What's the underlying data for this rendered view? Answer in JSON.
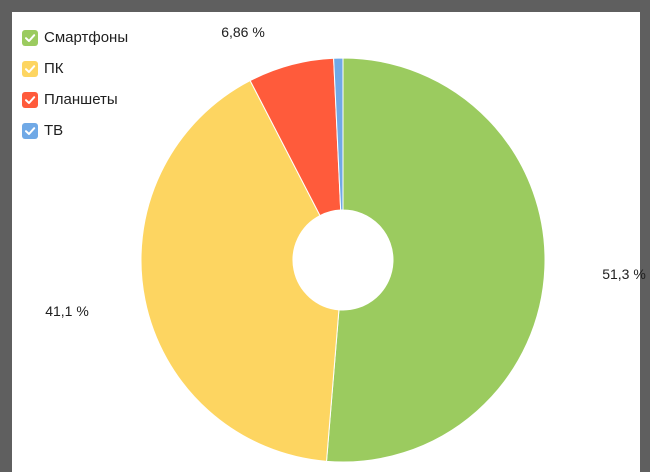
{
  "chart_data": {
    "type": "pie",
    "donut": true,
    "title": "",
    "legend_position": "top-left",
    "categories": [
      "Смартфоны",
      "ПК",
      "Планшеты",
      "ТВ"
    ],
    "values": [
      51.3,
      41.1,
      6.86,
      0.74
    ],
    "colors": [
      "#9bcb5f",
      "#fdd561",
      "#ff5b3b",
      "#70a9e6"
    ],
    "labels": [
      {
        "category": "Смартфоны",
        "text": "51,3 %"
      },
      {
        "category": "ПК",
        "text": "41,1 %"
      },
      {
        "category": "Планшеты",
        "text": "6,86 %"
      },
      {
        "category": "ТВ",
        "text": ""
      }
    ]
  }
}
